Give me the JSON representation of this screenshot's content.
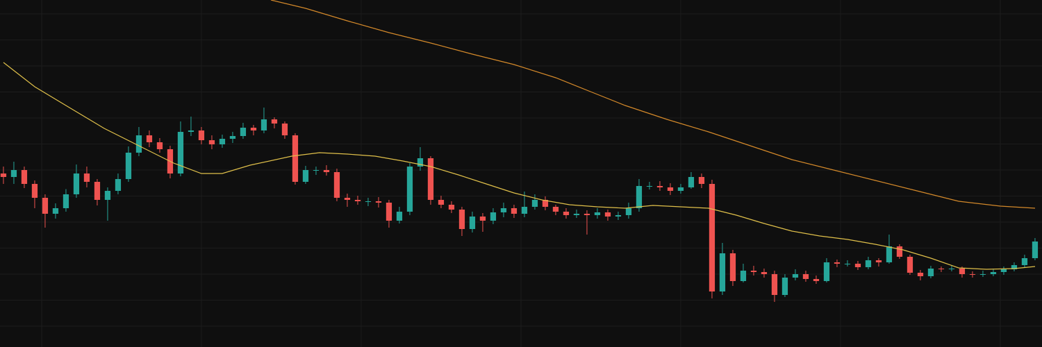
{
  "chart_data": {
    "type": "candlestick",
    "up_color": "#26a69a",
    "down_color": "#ef5350",
    "grid": true,
    "xlim": [
      -0.33,
      99.67
    ],
    "ylim": [
      0,
      100
    ],
    "xticks": [
      3.67,
      19,
      34.33,
      49.67,
      65,
      80.33,
      95.67
    ],
    "yticks": [
      6,
      13.5,
      21,
      28.5,
      36,
      43.5,
      51,
      58.5,
      66,
      73.5,
      81,
      88.5,
      96
    ],
    "candles": {
      "open": [
        50,
        49,
        51,
        47,
        43,
        38.4,
        40,
        44,
        50,
        47.6,
        42.4,
        45,
        48.4,
        56,
        61,
        59,
        57,
        50,
        62,
        62.4,
        59.6,
        58.4,
        60,
        60.8,
        63.2,
        62.4,
        65.6,
        64.4,
        61,
        47.6,
        51,
        51,
        50.4,
        43,
        42.4,
        42,
        42,
        41.6,
        36.4,
        39,
        52,
        54.4,
        42.4,
        41,
        39.6,
        34,
        37.6,
        36.4,
        38.8,
        40,
        38.4,
        40.4,
        42.4,
        40.4,
        39,
        38,
        38.4,
        38,
        38.8,
        37.6,
        38,
        40,
        46.4,
        46.4,
        46,
        45,
        46,
        49,
        47,
        16,
        27,
        19,
        22,
        21.6,
        21,
        15,
        20,
        21,
        19.6,
        19,
        24.4,
        24,
        24,
        23,
        25,
        24.4,
        29,
        26,
        21.4,
        20.4,
        22.6,
        22.4,
        22.6,
        21,
        20.8,
        21,
        21.6,
        22.4,
        23.6,
        25.6
      ],
      "high": [
        52,
        53.4,
        52,
        48,
        44,
        41.4,
        45.5,
        52.6,
        52,
        48.4,
        46,
        50,
        57.8,
        63.4,
        62.4,
        60.2,
        58,
        65,
        66.4,
        63.4,
        61,
        61.2,
        62,
        64.6,
        64,
        69,
        66.2,
        65,
        61.6,
        52.2,
        52,
        52.4,
        51.4,
        44.2,
        43.6,
        43,
        43.2,
        42.4,
        40.4,
        53,
        57.6,
        55,
        43.6,
        42,
        40.4,
        39,
        38.6,
        40,
        41.6,
        41,
        44.8,
        44,
        43.4,
        41,
        40,
        39.6,
        39.4,
        40,
        39.6,
        39,
        41.6,
        48.4,
        47.6,
        47.8,
        47.2,
        47,
        50.4,
        50,
        48.2,
        30,
        28,
        24,
        23.4,
        22.6,
        22,
        21,
        22.4,
        22,
        20.6,
        25.6,
        25.2,
        25,
        24.8,
        26,
        25.6,
        32.4,
        29.6,
        26.6,
        22.2,
        23.4,
        23.2,
        23.4,
        23.2,
        21.8,
        22,
        22.4,
        23.2,
        24.4,
        26.6,
        31.4
      ],
      "low": [
        47,
        47,
        45.8,
        40,
        34.4,
        37,
        39,
        43,
        46,
        40.8,
        36.4,
        44,
        47.6,
        55,
        57.6,
        56,
        48.6,
        49.2,
        60.8,
        58.4,
        57,
        57.4,
        58.8,
        60,
        61,
        61.6,
        63,
        60,
        46.8,
        47,
        49.6,
        49.4,
        42,
        40.4,
        41,
        40.6,
        40.2,
        34.4,
        35.6,
        38,
        50.8,
        41,
        40,
        38.6,
        32,
        33,
        33.2,
        35.4,
        37.4,
        37.2,
        37.4,
        39.6,
        39.4,
        38,
        37,
        37.2,
        32.4,
        37,
        36.4,
        36.6,
        37,
        39,
        45.4,
        45,
        43.8,
        44.2,
        45.6,
        45.8,
        14,
        15,
        17.6,
        18.6,
        20.6,
        20,
        13,
        14.4,
        19.2,
        18.8,
        18.2,
        18.6,
        23,
        23.2,
        22.2,
        22.4,
        23.2,
        24,
        25.4,
        20.8,
        19.2,
        19.8,
        21.6,
        21.8,
        20,
        20,
        20.2,
        20.4,
        20.8,
        21.8,
        23,
        25
      ],
      "close": [
        49,
        51,
        47,
        43,
        38.4,
        40,
        44,
        50,
        47.6,
        42.4,
        45,
        48.4,
        56,
        61,
        59,
        57,
        50,
        62,
        62.4,
        59.6,
        58.4,
        60,
        60.8,
        63.2,
        62.4,
        65.6,
        64.4,
        61,
        47.6,
        51,
        51,
        50.4,
        43,
        42.4,
        42,
        42,
        41.6,
        36.4,
        39,
        52,
        54.4,
        42.4,
        41,
        39.6,
        34,
        37.6,
        36.4,
        38.8,
        40,
        38.4,
        40.4,
        42.4,
        40.4,
        39,
        38,
        38.4,
        38,
        38.8,
        37.6,
        38,
        40,
        46.4,
        46.4,
        46,
        45,
        46,
        49,
        47,
        16,
        27,
        19,
        22,
        21.6,
        21,
        15,
        20,
        21,
        19.6,
        19,
        24.4,
        24,
        24,
        23,
        25,
        24.4,
        29,
        26,
        21.4,
        20.4,
        22.6,
        22.4,
        22.6,
        21,
        20.8,
        21,
        21.6,
        22.4,
        23.6,
        25.6,
        30.4
      ]
    },
    "series": [
      {
        "color": "#e0c04a",
        "x": [
          0,
          3,
          6.33,
          9.67,
          13,
          16.33,
          19,
          21,
          23.67,
          27.67,
          30.33,
          33,
          35.67,
          38.33,
          41,
          43.67,
          46.33,
          49,
          51.67,
          54.33,
          57,
          59.67,
          62.33,
          65,
          67.67,
          70.33,
          73,
          75.67,
          78.33,
          81,
          83.67,
          86.33,
          89,
          91.67,
          94.33,
          97,
          99
        ],
        "values": [
          82,
          75,
          69,
          63,
          58,
          53,
          50,
          50,
          52.4,
          55,
          56,
          55.6,
          55,
          53.6,
          52,
          49.6,
          47,
          44.4,
          42.4,
          41,
          40.4,
          40,
          40.8,
          40.4,
          40,
          38,
          35.6,
          33.4,
          32,
          31,
          29.6,
          28,
          25.6,
          22.8,
          22.4,
          22.6,
          23.2
        ]
      },
      {
        "color": "#d4892a",
        "x": [
          25.67,
          29,
          33,
          37,
          41,
          45,
          49,
          53,
          56.33,
          59.67,
          63.67,
          67.67,
          71.67,
          75.67,
          79.67,
          83.67,
          87.67,
          91.67,
          95.67,
          99
        ],
        "values": [
          100,
          97.6,
          94,
          90.6,
          87.6,
          84.4,
          81.4,
          77.6,
          73.6,
          69.6,
          65.6,
          62,
          58,
          54,
          51,
          48,
          45,
          42,
          40.6,
          40
        ]
      }
    ]
  }
}
